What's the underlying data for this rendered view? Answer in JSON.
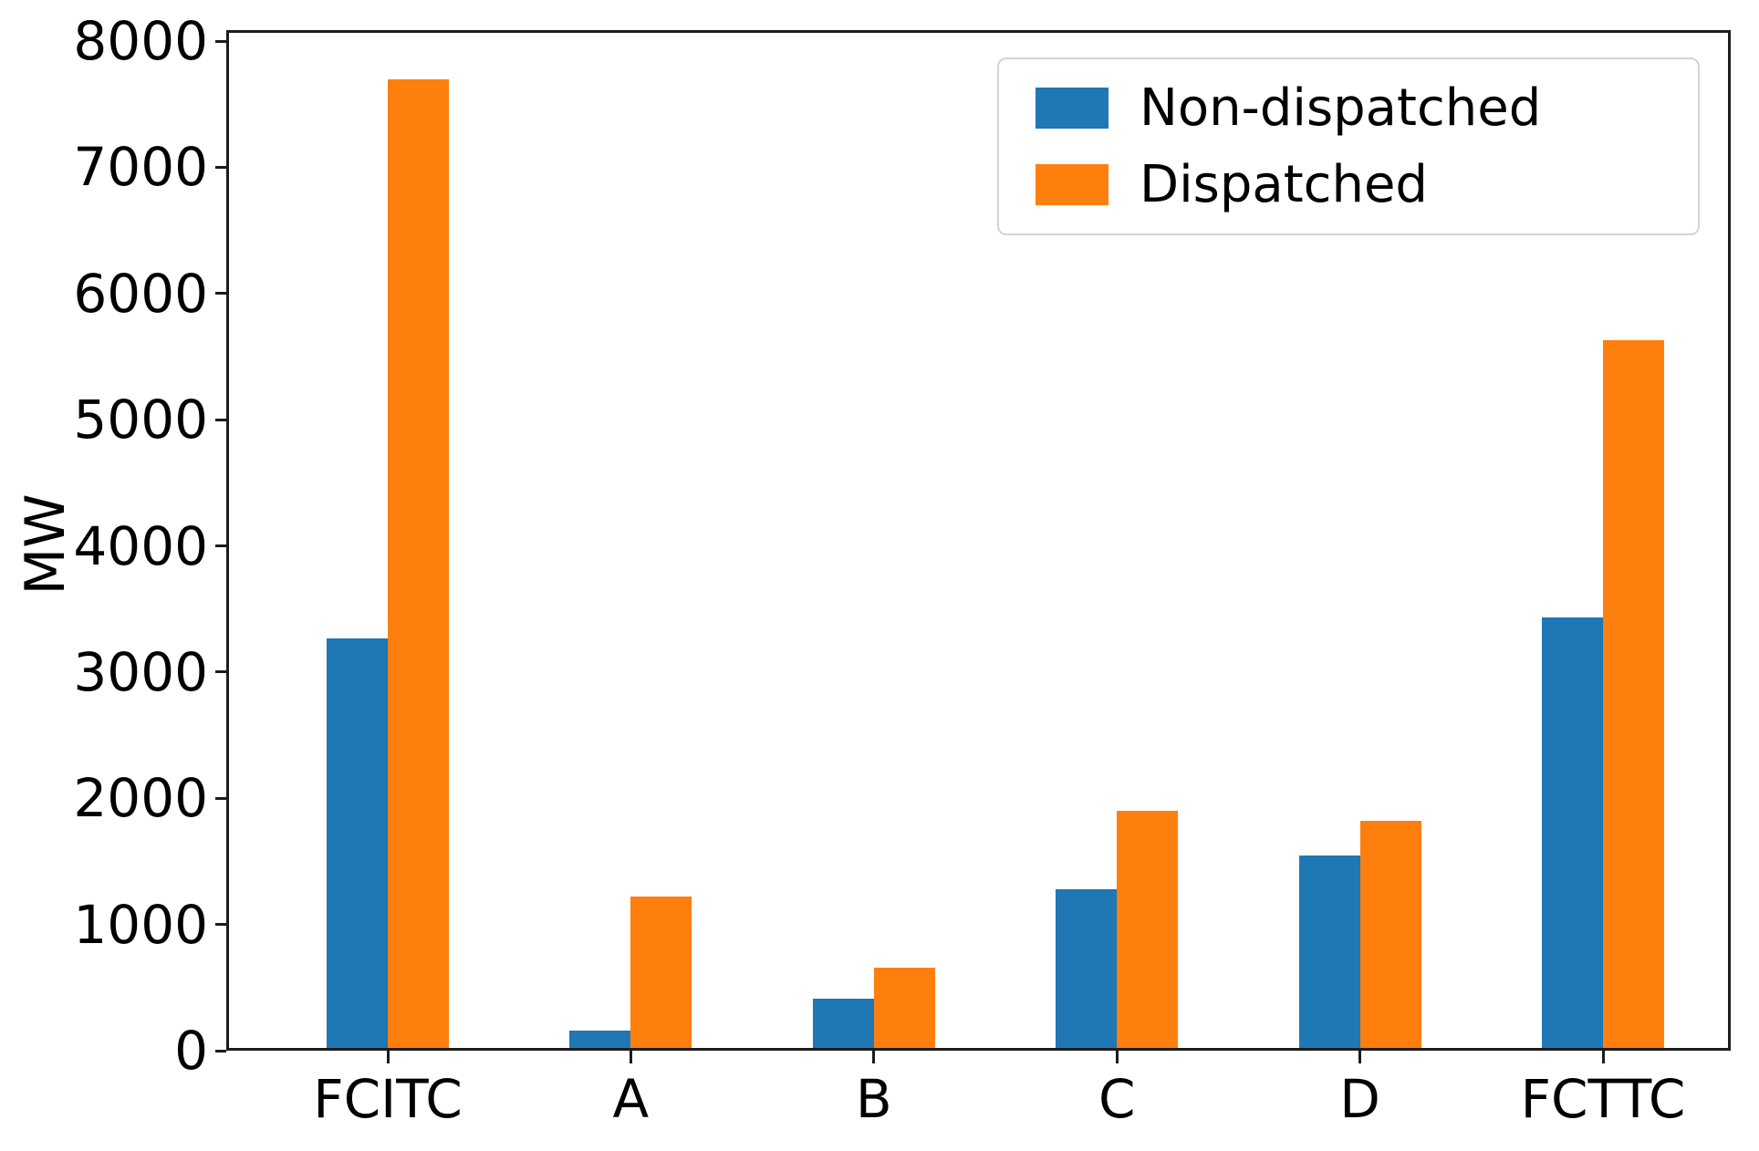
{
  "chart_data": {
    "type": "bar",
    "categories": [
      "FCITC",
      "A",
      "B",
      "C",
      "D",
      "FCTTC"
    ],
    "series": [
      {
        "name": "Non-dispatched",
        "color": "#1f77b4",
        "values": [
          3270,
          160,
          410,
          1280,
          1550,
          3430
        ]
      },
      {
        "name": "Dispatched",
        "color": "#ff7f0e",
        "values": [
          7700,
          1220,
          660,
          1900,
          1820,
          5630
        ]
      }
    ],
    "title": "",
    "xlabel": "",
    "ylabel": "MW",
    "ylim": [
      0,
      8000
    ],
    "ytick_step": 1000,
    "grid": false,
    "legend_position": "upper right",
    "spine_color": "#1c1c1c",
    "background_color": "#ffffff"
  }
}
